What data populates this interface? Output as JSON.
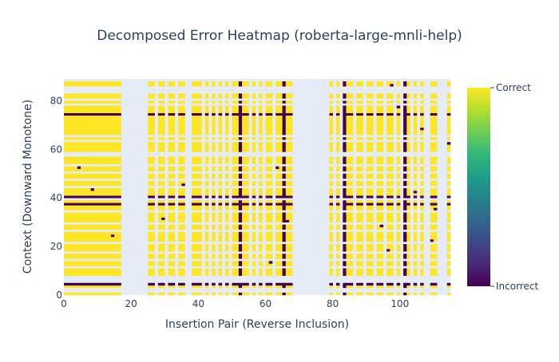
{
  "chart_data": {
    "type": "heatmap",
    "title": "Decomposed Error Heatmap (roberta-large-mnli-help)",
    "xlabel": "Insertion Pair (Reverse Inclusion)",
    "ylabel": "Context (Downward Monotone)",
    "xlim": [
      0,
      115
    ],
    "ylim": [
      0,
      89
    ],
    "x_ticks": [
      "0",
      "20",
      "40",
      "60",
      "80",
      "100"
    ],
    "y_ticks": [
      "0",
      "20",
      "40",
      "60",
      "80"
    ],
    "colorbar": {
      "colorscale": "Viridis",
      "tick_top": "Correct",
      "tick_bottom": "Incorrect",
      "stops": [
        "#440154",
        "#482878",
        "#3e4989",
        "#31688e",
        "#26828e",
        "#1f9e89",
        "#35b779",
        "#6ece58",
        "#b5de2b",
        "#fde725"
      ]
    },
    "missing_color": "#e5ecf6",
    "correct_color": "#fde725",
    "incorrect_color": "#440154",
    "missing_rows": [
      1,
      2,
      5,
      6,
      7,
      11,
      14,
      17,
      21,
      26,
      29,
      34,
      39,
      44,
      47,
      50,
      53,
      57,
      58,
      63,
      65,
      78,
      80,
      83,
      84,
      85,
      88
    ],
    "missing_cols": [
      17,
      18,
      19,
      20,
      21,
      22,
      23,
      24,
      27,
      30,
      33,
      36,
      37,
      41,
      43,
      45,
      47,
      49,
      52,
      55,
      57,
      59,
      62,
      68,
      69,
      70,
      71,
      72,
      73,
      74,
      75,
      76,
      77,
      78,
      80,
      82,
      86,
      89,
      92,
      95,
      98,
      100,
      103,
      105,
      107,
      108,
      111,
      112,
      113
    ],
    "incorrect_rows": [
      4,
      40,
      74,
      37
    ],
    "incorrect_cols": [
      52,
      101,
      65,
      83
    ],
    "incorrect_points": [
      [
        2,
        50
      ],
      [
        8,
        43
      ],
      [
        14,
        24
      ],
      [
        24,
        39
      ],
      [
        29,
        31
      ],
      [
        38,
        85
      ],
      [
        45,
        41
      ],
      [
        46,
        84
      ],
      [
        55,
        63
      ],
      [
        57,
        9
      ],
      [
        61,
        13
      ],
      [
        66,
        30
      ],
      [
        70,
        6
      ],
      [
        77,
        55
      ],
      [
        80,
        46
      ],
      [
        86,
        54
      ],
      [
        89,
        60
      ],
      [
        92,
        73
      ],
      [
        96,
        18
      ],
      [
        99,
        77
      ],
      [
        103,
        27
      ],
      [
        106,
        68
      ],
      [
        108,
        11
      ],
      [
        110,
        35
      ],
      [
        112,
        58
      ],
      [
        114,
        62
      ],
      [
        4,
        52
      ],
      [
        18,
        48
      ],
      [
        30,
        60
      ],
      [
        33,
        70
      ],
      [
        35,
        45
      ],
      [
        41,
        20
      ],
      [
        48,
        65
      ],
      [
        59,
        15
      ],
      [
        63,
        52
      ],
      [
        72,
        48
      ],
      [
        84,
        34
      ],
      [
        91,
        47
      ],
      [
        94,
        28
      ],
      [
        97,
        86
      ],
      [
        104,
        42
      ],
      [
        109,
        22
      ],
      [
        111,
        68
      ],
      [
        113,
        16
      ]
    ]
  }
}
